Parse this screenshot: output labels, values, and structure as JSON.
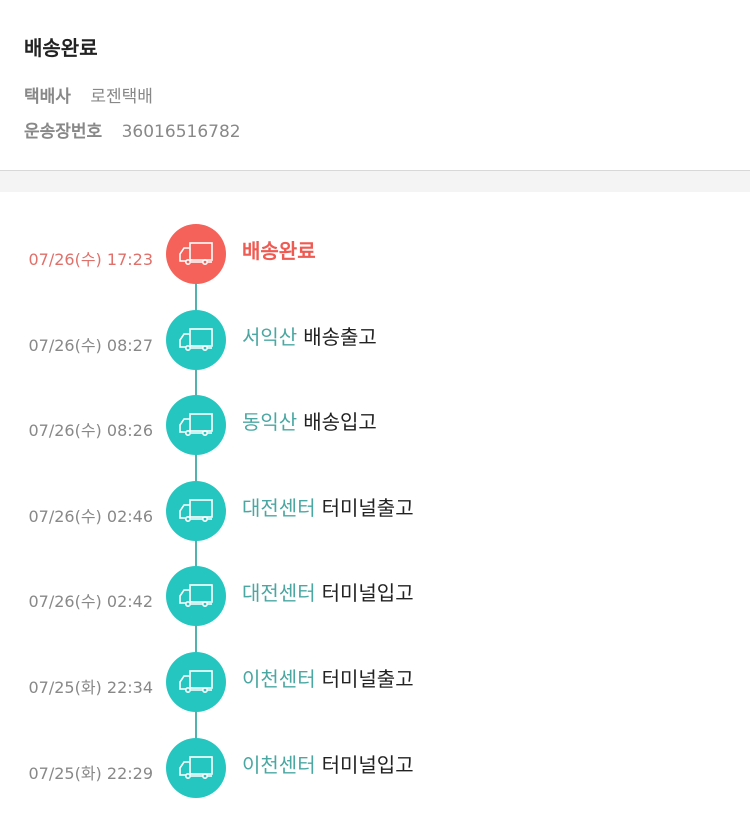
{
  "header": {
    "title": "배송완료",
    "courier_label": "택배사",
    "courier_value": "로젠택배",
    "tracking_label": "운송장번호",
    "tracking_value": "36016516782"
  },
  "colors": {
    "current": "#f4625a",
    "past": "#26c6c0",
    "location_text": "#4aa7a2"
  },
  "timeline": [
    {
      "time": "07/26(수) 17:23",
      "location": "",
      "status": "배송완료",
      "icon": "truck-icon",
      "current": true
    },
    {
      "time": "07/26(수) 08:27",
      "location": "서익산",
      "status": "배송출고",
      "icon": "truck-icon"
    },
    {
      "time": "07/26(수) 08:26",
      "location": "동익산",
      "status": "배송입고",
      "icon": "truck-icon"
    },
    {
      "time": "07/26(수) 02:46",
      "location": "대전센터",
      "status": "터미널출고",
      "icon": "truck-icon"
    },
    {
      "time": "07/26(수) 02:42",
      "location": "대전센터",
      "status": "터미널입고",
      "icon": "truck-icon"
    },
    {
      "time": "07/25(화) 22:34",
      "location": "이천센터",
      "status": "터미널출고",
      "icon": "truck-icon"
    },
    {
      "time": "07/25(화) 22:29",
      "location": "이천센터",
      "status": "터미널입고",
      "icon": "truck-icon"
    }
  ]
}
